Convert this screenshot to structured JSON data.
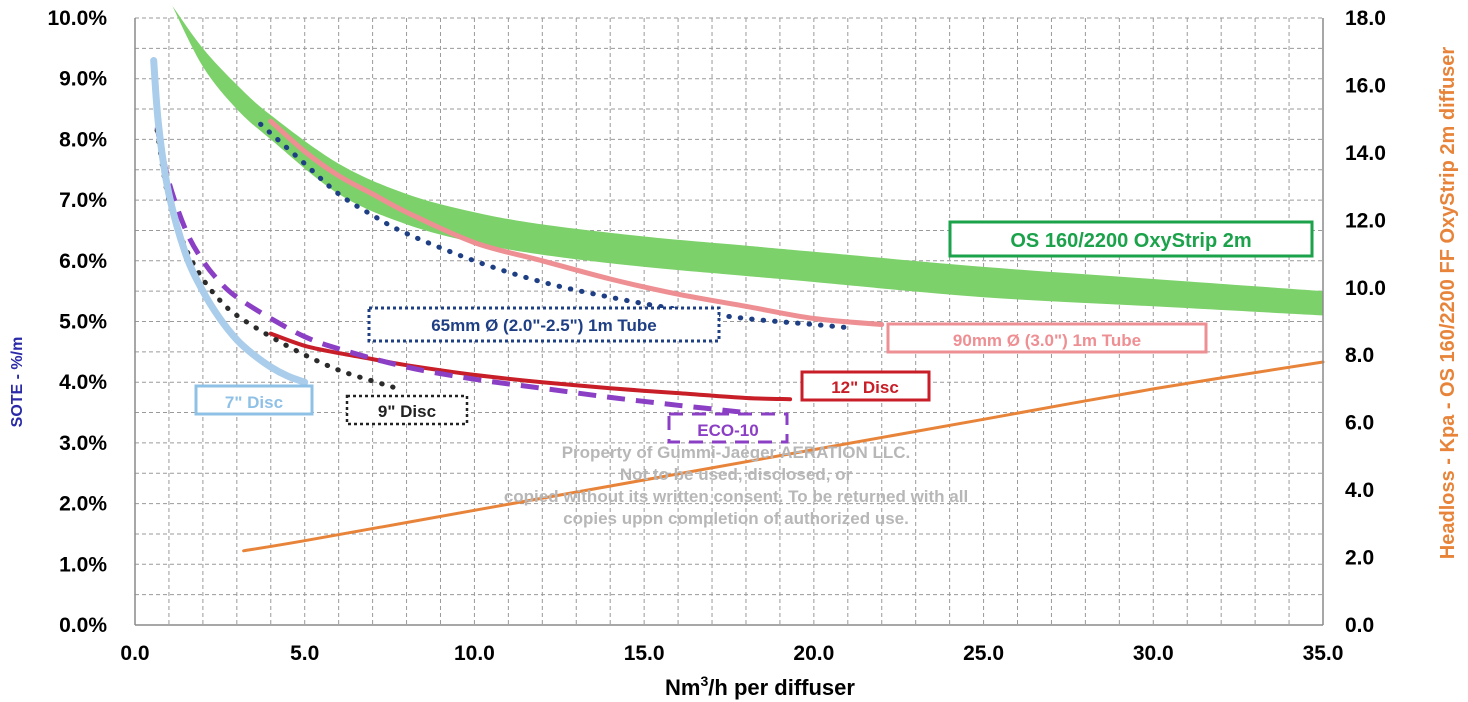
{
  "chart_data": {
    "type": "line",
    "xlabel_main": "Nm",
    "xlabel_sup": "3",
    "xlabel_rest": "/h  per diffuser",
    "ylabel_left": "SOTE - %/m",
    "ylabel_right": "Headloss - Kpa - OS 160/2200 FF OxyStrip 2m diffuser",
    "xlim": [
      0,
      35
    ],
    "ylim_left": [
      0,
      10
    ],
    "ylim_right": [
      0,
      18
    ],
    "x_ticks": [
      "0.0",
      "5.0",
      "10.0",
      "15.0",
      "20.0",
      "25.0",
      "30.0",
      "35.0"
    ],
    "y_left_ticks": [
      "0.0%",
      "1.0%",
      "2.0%",
      "3.0%",
      "4.0%",
      "5.0%",
      "6.0%",
      "7.0%",
      "8.0%",
      "9.0%",
      "10.0%"
    ],
    "y_right_ticks": [
      "0.0",
      "2.0",
      "4.0",
      "6.0",
      "8.0",
      "10.0",
      "12.0",
      "14.0",
      "16.0",
      "18.0"
    ],
    "grid": true,
    "series": [
      {
        "name": "OS 160/2200 OxyStrip 2m",
        "style": "band",
        "color": "#7cd16a",
        "x": [
          1.1,
          2,
          3,
          4,
          6,
          8,
          10,
          12,
          15,
          18,
          20,
          25,
          30,
          35
        ],
        "upper": [
          10.2,
          9.5,
          8.9,
          8.4,
          7.6,
          7.1,
          6.8,
          6.6,
          6.4,
          6.25,
          6.15,
          5.9,
          5.7,
          5.5
        ],
        "lower": [
          10.2,
          9.2,
          8.5,
          8.0,
          7.1,
          6.6,
          6.3,
          6.1,
          5.9,
          5.75,
          5.65,
          5.4,
          5.25,
          5.1
        ]
      },
      {
        "name": "90mm Ø (3.0\") 1m Tube",
        "style": "solid",
        "color": "#ee8f93",
        "x": [
          4.0,
          5,
          6,
          7,
          8,
          10,
          12,
          14,
          16,
          18,
          20,
          22
        ],
        "values": [
          8.3,
          7.8,
          7.4,
          7.1,
          6.8,
          6.3,
          6.0,
          5.7,
          5.45,
          5.25,
          5.05,
          4.95
        ]
      },
      {
        "name": "65mm Ø (2.0\"-2.5\") 1m Tube",
        "style": "dotted",
        "color": "#1f3f85",
        "x": [
          3.7,
          5,
          6,
          7,
          8,
          10,
          12,
          14,
          16,
          18,
          20,
          21
        ],
        "values": [
          8.25,
          7.6,
          7.1,
          6.75,
          6.45,
          6.0,
          5.65,
          5.4,
          5.2,
          5.05,
          4.95,
          4.9
        ]
      },
      {
        "name": "12\" Disc",
        "style": "solid",
        "color": "#c81e28",
        "x": [
          4.0,
          5,
          6,
          7,
          8,
          10,
          12,
          14,
          16,
          18,
          19.3
        ],
        "values": [
          4.8,
          4.6,
          4.48,
          4.38,
          4.28,
          4.12,
          4.0,
          3.9,
          3.82,
          3.74,
          3.72
        ]
      },
      {
        "name": "ECO-10",
        "style": "dashed",
        "color": "#8a3fc5",
        "x": [
          0.65,
          1,
          1.5,
          2,
          2.5,
          3,
          4,
          5,
          6,
          8,
          10,
          12,
          14,
          16,
          18
        ],
        "values": [
          8.2,
          7.3,
          6.5,
          6.0,
          5.65,
          5.4,
          5.05,
          4.75,
          4.55,
          4.25,
          4.05,
          3.9,
          3.75,
          3.62,
          3.5
        ]
      },
      {
        "name": "9\" Disc",
        "style": "dotted",
        "color": "#2b2b2b",
        "x": [
          0.65,
          1,
          1.5,
          2,
          2.5,
          3,
          4,
          5,
          6,
          7,
          7.6
        ],
        "values": [
          8.15,
          7.0,
          6.2,
          5.7,
          5.35,
          5.1,
          4.75,
          4.45,
          4.2,
          4.02,
          3.92
        ]
      },
      {
        "name": "7\" Disc",
        "style": "solid",
        "color": "#a9cdea",
        "x": [
          0.55,
          0.7,
          1,
          1.5,
          2,
          2.5,
          3,
          3.5,
          4,
          4.5,
          5
        ],
        "values": [
          9.3,
          8.2,
          7.1,
          6.1,
          5.5,
          5.05,
          4.7,
          4.45,
          4.25,
          4.1,
          4.0
        ]
      },
      {
        "name": "Headloss - Kpa - OS 160/2200 FF OxyStrip 2m diffuser",
        "axis": "right",
        "style": "solid",
        "color": "#e8843a",
        "x": [
          3.2,
          5,
          10,
          15,
          20,
          25,
          30,
          35
        ],
        "values": [
          2.2,
          2.5,
          3.4,
          4.3,
          5.2,
          6.1,
          7.0,
          7.8
        ]
      }
    ],
    "labels": {
      "oxystrip": "OS 160/2200 OxyStrip 2m",
      "tube90": "90mm Ø (3.0\") 1m Tube",
      "tube65": "65mm Ø (2.0\"-2.5\") 1m Tube",
      "disc12": "12\" Disc",
      "eco10": "ECO-10",
      "disc9": "9\" Disc",
      "disc7": "7\" Disc"
    },
    "watermark": [
      "Property of Gummi-Jaeger AERATION LLC.",
      "Not to be used, disclosed, or",
      "copied without its written consent. To be returned with all",
      "copies upon completion of authorized use."
    ]
  }
}
